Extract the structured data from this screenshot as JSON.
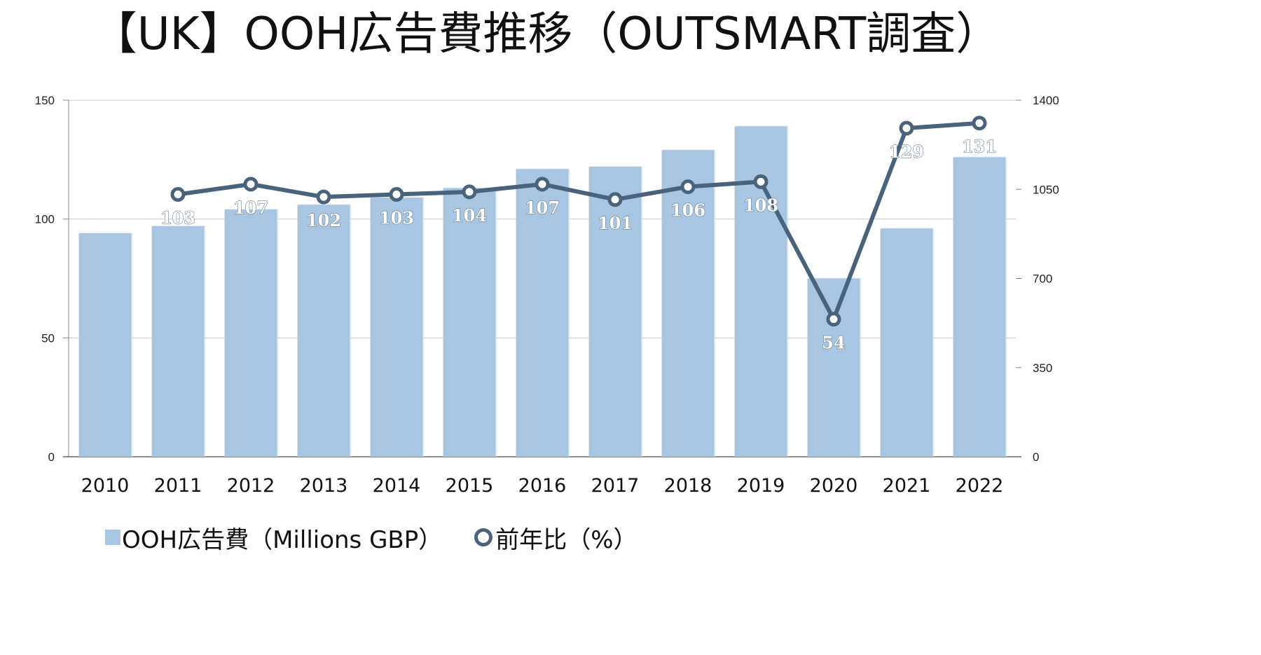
{
  "chart_data": {
    "type": "bar+line",
    "title": "【UK】OOH広告費推移（OUTSMART調査）",
    "categories": [
      "2010",
      "2011",
      "2012",
      "2013",
      "2014",
      "2015",
      "2016",
      "2017",
      "2018",
      "2019",
      "2020",
      "2021",
      "2022"
    ],
    "series": [
      {
        "name": "OOH広告費（Millions GBP）",
        "type": "bar",
        "axis": "left",
        "color": "#a8c6e2",
        "values": [
          94,
          97,
          104,
          106,
          109,
          113,
          121,
          122,
          129,
          139,
          75,
          96,
          126
        ]
      },
      {
        "name": "前年比（%）",
        "type": "line",
        "axis": "right",
        "color": "#4a637c",
        "values": [
          null,
          103,
          107,
          102,
          103,
          104,
          107,
          101,
          106,
          108,
          54,
          129,
          131
        ],
        "labels": [
          "",
          "103",
          "107",
          "102",
          "103",
          "104",
          "107",
          "101",
          "106",
          "108",
          "54",
          "129",
          "131"
        ]
      }
    ],
    "y_left": {
      "ticks": [
        "0",
        "50",
        "100",
        "150"
      ],
      "range": [
        0,
        150
      ]
    },
    "y_right": {
      "ticks": [
        "0",
        "350",
        "700",
        "1050",
        "1400"
      ],
      "range": [
        0,
        1400
      ]
    },
    "grid": true,
    "legend_position": "bottom-left"
  }
}
